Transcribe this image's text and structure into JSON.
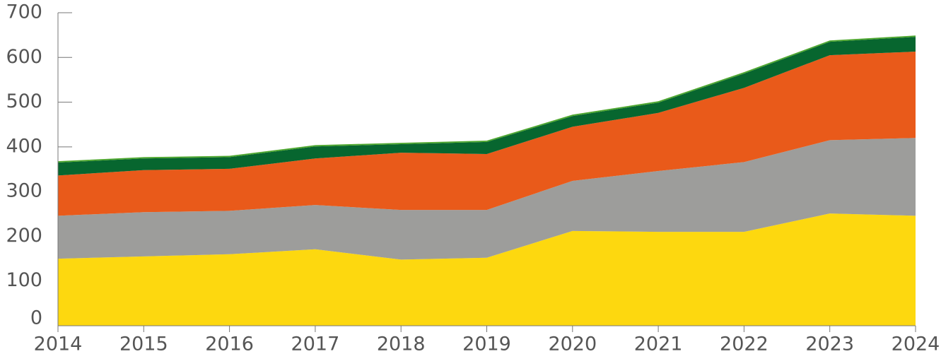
{
  "chart_data": {
    "type": "stacked_area",
    "x": [
      2014,
      2015,
      2016,
      2017,
      2018,
      2019,
      2020,
      2021,
      2022,
      2023,
      2024
    ],
    "series": [
      {
        "color": "#fdd80f",
        "values": [
          150,
          155,
          160,
          171,
          148,
          152,
          212,
          210,
          210,
          251,
          246
        ]
      },
      {
        "color": "#9d9d9b",
        "values": [
          96,
          99,
          97,
          99,
          111,
          107,
          112,
          136,
          156,
          164,
          174
        ]
      },
      {
        "color": "#e95a1a",
        "values": [
          90,
          94,
          94,
          104,
          128,
          125,
          121,
          130,
          166,
          190,
          193
        ]
      },
      {
        "color": "#07662f",
        "values": [
          29,
          26,
          26,
          27,
          19,
          27,
          24,
          23,
          32,
          30,
          33
        ]
      },
      {
        "color": "#4ea72e",
        "values": [
          3,
          3,
          3,
          3,
          3,
          3,
          3,
          3,
          3,
          3,
          3
        ]
      }
    ],
    "xlim": [
      2014,
      2024
    ],
    "xticks": [
      2014,
      2015,
      2016,
      2017,
      2018,
      2019,
      2020,
      2021,
      2022,
      2023,
      2024
    ],
    "ylim": [
      0,
      700
    ],
    "yticks": [
      0,
      100,
      200,
      300,
      400,
      500,
      600,
      700
    ],
    "grid": false
  }
}
